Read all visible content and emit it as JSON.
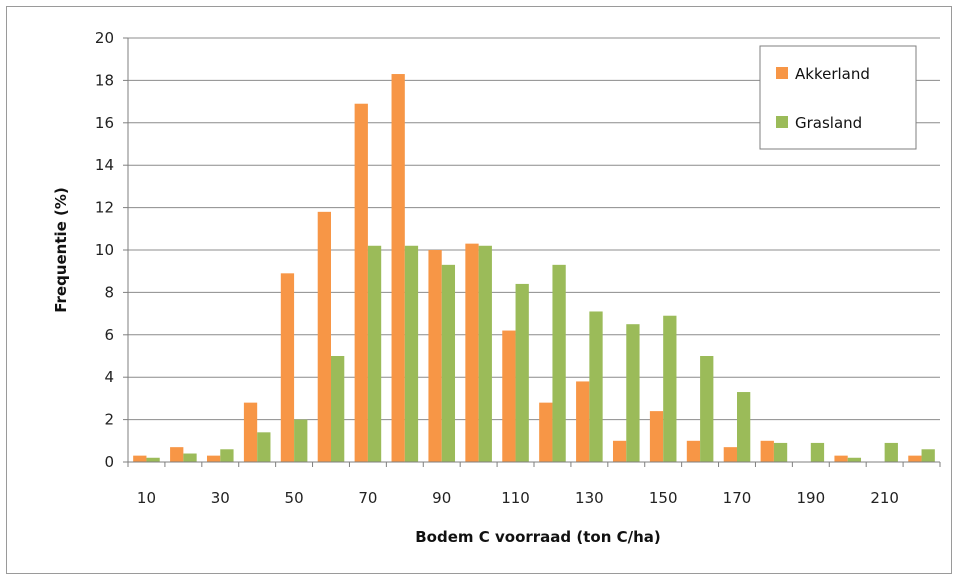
{
  "chart_data": {
    "type": "bar",
    "xlabel": "Bodem C voorraad  (ton C/ha)",
    "ylabel": "Frequentie (%)",
    "ylim": [
      0,
      20
    ],
    "yticks": [
      "0",
      "2",
      "4",
      "6",
      "8",
      "10",
      "12",
      "14",
      "16",
      "18",
      "20"
    ],
    "categories": [
      "10",
      "20",
      "30",
      "40",
      "50",
      "60",
      "70",
      "80",
      "90",
      "100",
      "110",
      "120",
      "130",
      "140",
      "150",
      "160",
      "170",
      "180",
      "190",
      "200",
      "210",
      "220"
    ],
    "xtick_labels": [
      "10",
      "30",
      "50",
      "70",
      "90",
      "110",
      "130",
      "150",
      "170",
      "190",
      "210"
    ],
    "grid": true,
    "legend_position": "top-right",
    "series": [
      {
        "name": "Akkerland",
        "color": "#f79646",
        "values": [
          0.3,
          0.7,
          0.3,
          2.8,
          8.9,
          11.8,
          16.9,
          18.3,
          10.0,
          10.3,
          6.2,
          2.8,
          3.8,
          1.0,
          2.4,
          1.0,
          0.7,
          1.0,
          0.0,
          0.3,
          0.0,
          0.3
        ]
      },
      {
        "name": "Grasland",
        "color": "#9bbb59",
        "values": [
          0.2,
          0.4,
          0.6,
          1.4,
          2.0,
          5.0,
          10.2,
          10.2,
          9.3,
          10.2,
          8.4,
          9.3,
          7.1,
          6.5,
          6.9,
          5.0,
          3.3,
          0.9,
          0.9,
          0.2,
          0.9,
          0.6
        ]
      }
    ]
  }
}
